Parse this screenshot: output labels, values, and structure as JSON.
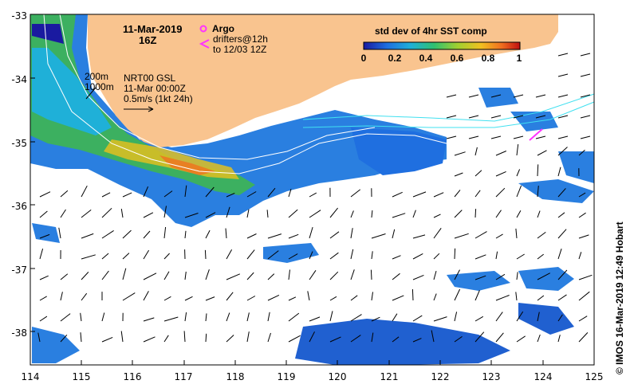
{
  "date_title": "11-Mar-2019",
  "time_title": "16Z",
  "legend": {
    "argo_label": "Argo",
    "drifters_label_1": "drifters@12h",
    "drifters_label_2": "to 12/03 12Z",
    "argo_color": "#ff33ff",
    "drifter_color": "#ff33ff"
  },
  "isobaths": {
    "shallow": "200m",
    "deep": "1000m"
  },
  "currents": {
    "product": "NRT00 GSL",
    "valid": "11-Mar 00:00Z",
    "scale": "0.5m/s (1kt 24h)"
  },
  "colorbar": {
    "title": "std dev of 4hr SST comp",
    "ticks": [
      "0",
      "0.2",
      "0.4",
      "0.6",
      "0.8",
      "1"
    ],
    "range": [
      0,
      1
    ],
    "colors": [
      "#1a1aa0",
      "#1f6fe0",
      "#1fb0d8",
      "#30c070",
      "#a0d030",
      "#f0c020",
      "#f07020",
      "#c01010"
    ]
  },
  "axes": {
    "x_ticks": [
      "114",
      "115",
      "116",
      "117",
      "118",
      "119",
      "120",
      "121",
      "122",
      "123",
      "124",
      "125"
    ],
    "y_ticks": [
      "-33",
      "-34",
      "-35",
      "-36",
      "-37",
      "-38"
    ],
    "xlim": [
      114,
      125
    ],
    "ylim": [
      -38.5,
      -33
    ]
  },
  "land_color": "#f9c48f",
  "credit": "© IMOS 16-Mar-2019 12:49 Hobart"
}
